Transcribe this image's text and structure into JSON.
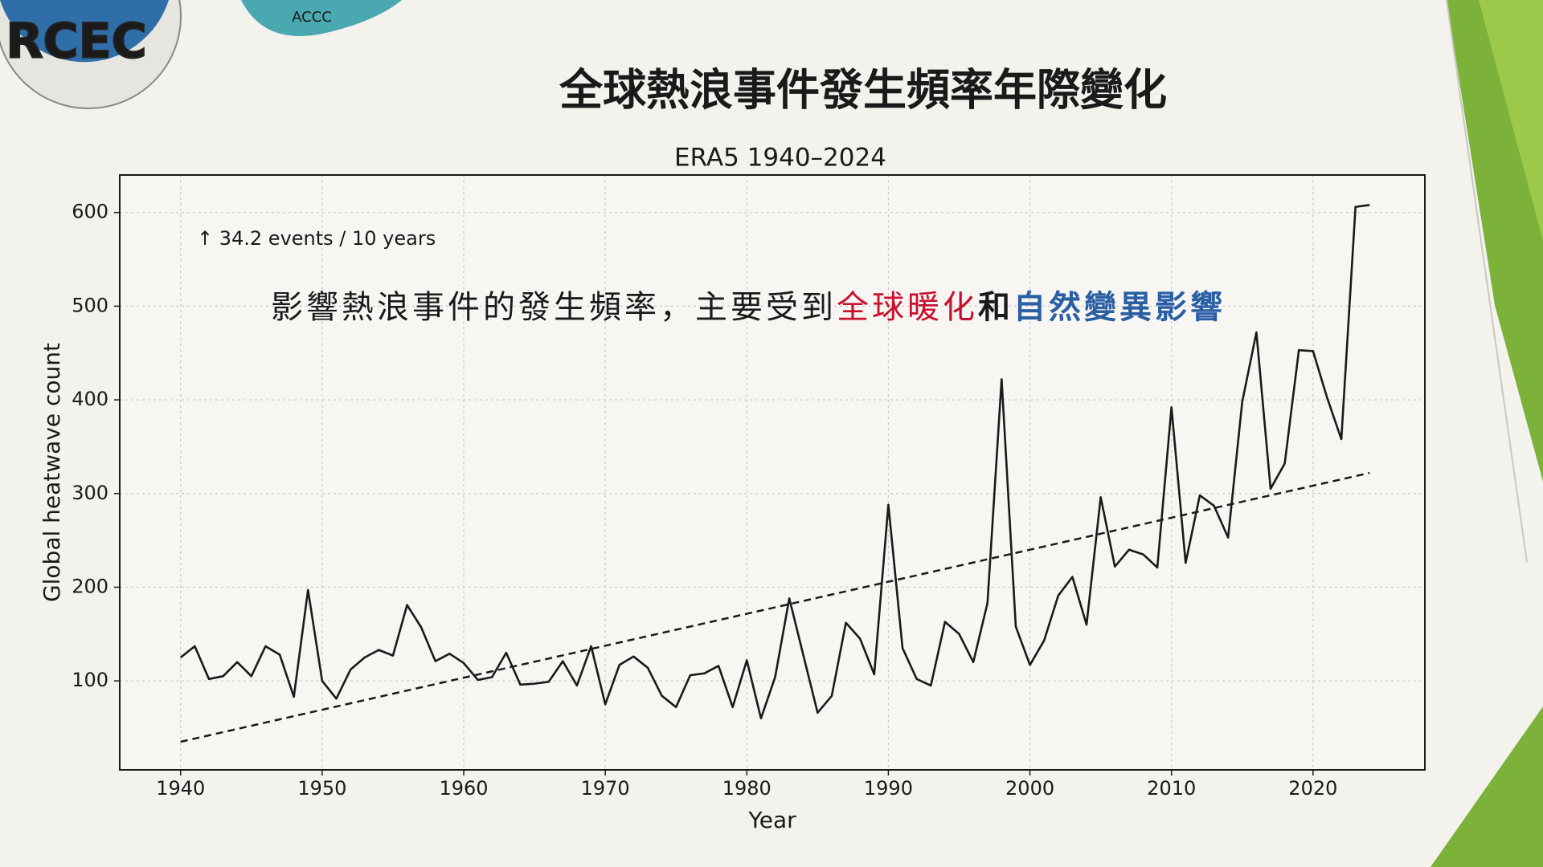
{
  "logos": {
    "left": "RCEC",
    "right": "ACCC"
  },
  "chart_data": {
    "type": "line",
    "title": "全球熱浪事件發生頻率年際變化",
    "subtitle": "ERA5 1940–2024",
    "annotation": "↑ 34.2 events / 10 years",
    "note": [
      {
        "text": "影響熱浪事件的發生頻率，主要受到",
        "color": "#1a1a1a"
      },
      {
        "text": "全球暖化",
        "color": "#c8102e"
      },
      {
        "text": "和",
        "color": "#1a1a1a"
      },
      {
        "text": "自然變異影響",
        "color": "#2a5fa5"
      }
    ],
    "x_label": "Year",
    "y_label": "Global heatwave count",
    "x": [
      1940,
      1941,
      1942,
      1943,
      1944,
      1945,
      1946,
      1947,
      1948,
      1949,
      1950,
      1951,
      1952,
      1953,
      1954,
      1955,
      1956,
      1957,
      1958,
      1959,
      1960,
      1961,
      1962,
      1963,
      1964,
      1965,
      1966,
      1967,
      1968,
      1969,
      1970,
      1971,
      1972,
      1973,
      1974,
      1975,
      1976,
      1977,
      1978,
      1979,
      1980,
      1981,
      1982,
      1983,
      1984,
      1985,
      1986,
      1987,
      1988,
      1989,
      1990,
      1991,
      1992,
      1993,
      1994,
      1995,
      1996,
      1997,
      1998,
      1999,
      2000,
      2001,
      2002,
      2003,
      2004,
      2005,
      2006,
      2007,
      2008,
      2009,
      2010,
      2011,
      2012,
      2013,
      2014,
      2015,
      2016,
      2017,
      2018,
      2019,
      2020,
      2021,
      2022,
      2023,
      2024
    ],
    "series": [
      {
        "color": "#1a1a1a",
        "dash": false,
        "values": [
          125,
          137,
          102,
          105,
          120,
          105,
          137,
          128,
          83,
          197,
          100,
          81,
          112,
          125,
          133,
          127,
          181,
          157,
          121,
          129,
          119,
          101,
          104,
          130,
          96,
          97,
          99,
          121,
          95,
          137,
          75,
          117,
          126,
          114,
          84,
          72,
          106,
          108,
          116,
          72,
          122,
          60,
          104,
          188,
          127,
          66,
          84,
          162,
          145,
          107,
          288,
          135,
          102,
          95,
          163,
          150,
          120,
          183,
          422,
          158,
          117,
          143,
          191,
          211,
          160,
          296,
          222,
          240,
          235,
          221,
          392,
          226,
          298,
          287,
          253,
          398,
          472,
          305,
          332,
          453,
          452,
          402,
          358,
          606,
          608
        ]
      },
      {
        "color": "#1a1a1a",
        "dash": true,
        "x": [
          1940,
          2024
        ],
        "values": [
          35,
          322
        ]
      }
    ],
    "xlim": [
      1935.7,
      2027.9
    ],
    "ylim": [
      5,
      640
    ],
    "xticks": [
      1940,
      1950,
      1960,
      1970,
      1980,
      1990,
      2000,
      2010,
      2020
    ],
    "yticks": [
      100,
      200,
      300,
      400,
      500,
      600
    ],
    "grid": true
  }
}
